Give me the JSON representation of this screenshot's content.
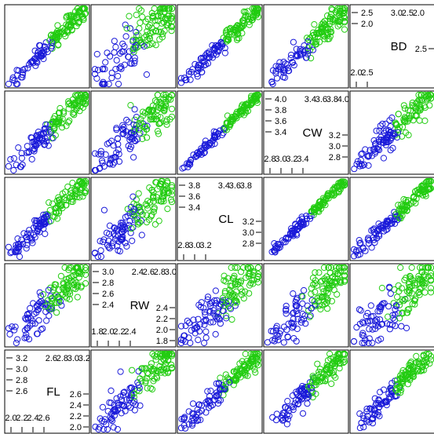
{
  "chart_data": {
    "type": "scatter-matrix",
    "variables": [
      "FL",
      "RW",
      "CL",
      "CW",
      "BD"
    ],
    "diagonal_labels": [
      "BD",
      "CW",
      "CL",
      "RW",
      "FL"
    ],
    "colors": {
      "group_low": "#1a1ad9",
      "group_high": "#22cc11"
    },
    "grid": false,
    "legend": "none",
    "diagonal_ticks": {
      "BD": {
        "top": [
          "3.0",
          "2.5",
          "2.0"
        ],
        "left": [
          "2.5",
          "2.0"
        ],
        "right": [
          "2.5"
        ],
        "bottom": [
          "2.0",
          "2.5"
        ]
      },
      "CW": {
        "top": [
          "3.4",
          "3.6",
          "3.8",
          "4.0"
        ],
        "left": [
          "4.0",
          "3.8",
          "3.6",
          "3.4"
        ],
        "right": [
          "3.2",
          "3.0",
          "2.8"
        ],
        "bottom": [
          "2.8",
          "3.0",
          "3.2",
          "3.4"
        ]
      },
      "CL": {
        "top": [
          "3.4",
          "3.6",
          "3.8"
        ],
        "left": [
          "3.8",
          "3.6",
          "3.4"
        ],
        "right": [
          "3.2",
          "3.0",
          "2.8"
        ],
        "bottom": [
          "2.8",
          "3.0",
          "3.2"
        ]
      },
      "RW": {
        "top": [
          "2.4",
          "2.6",
          "2.8",
          "3.0"
        ],
        "left": [
          "3.0",
          "2.8",
          "2.6",
          "2.4"
        ],
        "right": [
          "2.4",
          "2.2",
          "2.0",
          "1.8"
        ],
        "bottom": [
          "1.8",
          "2.0",
          "2.2",
          "2.4"
        ]
      },
      "FL": {
        "top": [
          "2.6",
          "2.8",
          "3.0",
          "3.2"
        ],
        "left": [
          "3.2",
          "3.0",
          "2.8",
          "2.6"
        ],
        "right": [
          "2.6",
          "2.4",
          "2.2",
          "2.0"
        ],
        "bottom": [
          "2.0",
          "2.2",
          "2.4",
          "2.6"
        ]
      }
    },
    "panels": [
      {
        "row": 1,
        "col": 1,
        "slope": 1.0,
        "scatter": 0.06
      },
      {
        "row": 1,
        "col": 2,
        "slope": 1.0,
        "scatter": 0.14
      },
      {
        "row": 1,
        "col": 3,
        "slope": 1.0,
        "scatter": 0.05
      },
      {
        "row": 1,
        "col": 4,
        "slope": 1.0,
        "scatter": 0.08
      },
      {
        "row": 2,
        "col": 1,
        "slope": 1.0,
        "scatter": 0.07
      },
      {
        "row": 2,
        "col": 2,
        "slope": 1.0,
        "scatter": 0.12
      },
      {
        "row": 2,
        "col": 3,
        "slope": 1.0,
        "scatter": 0.03
      },
      {
        "row": 2,
        "col": 5,
        "slope": 1.0,
        "scatter": 0.08
      },
      {
        "row": 3,
        "col": 1,
        "slope": 1.0,
        "scatter": 0.06
      },
      {
        "row": 3,
        "col": 2,
        "slope": 1.0,
        "scatter": 0.12
      },
      {
        "row": 3,
        "col": 4,
        "slope": 1.0,
        "scatter": 0.03
      },
      {
        "row": 3,
        "col": 5,
        "slope": 1.0,
        "scatter": 0.05
      },
      {
        "row": 4,
        "col": 1,
        "slope": 1.0,
        "scatter": 0.11
      },
      {
        "row": 4,
        "col": 3,
        "slope": 1.0,
        "scatter": 0.12
      },
      {
        "row": 4,
        "col": 4,
        "slope": 1.0,
        "scatter": 0.12
      },
      {
        "row": 4,
        "col": 5,
        "slope": 1.0,
        "scatter": 0.14
      },
      {
        "row": 5,
        "col": 2,
        "slope": 1.0,
        "scatter": 0.11
      },
      {
        "row": 5,
        "col": 3,
        "slope": 1.0,
        "scatter": 0.06
      },
      {
        "row": 5,
        "col": 4,
        "slope": 1.0,
        "scatter": 0.07
      },
      {
        "row": 5,
        "col": 5,
        "slope": 1.0,
        "scatter": 0.06
      }
    ]
  }
}
